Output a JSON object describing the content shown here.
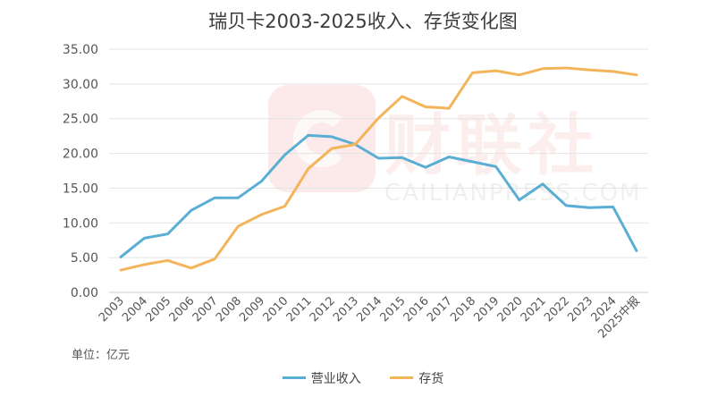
{
  "chart_data": {
    "type": "line",
    "title": "瑞贝卡2003-2025收入、存货变化图",
    "unit_label": "单位：亿元",
    "categories": [
      "2003",
      "2004",
      "2005",
      "2006",
      "2007",
      "2008",
      "2009",
      "2010",
      "2011",
      "2012",
      "2013",
      "2014",
      "2015",
      "2016",
      "2017",
      "2018",
      "2019",
      "2020",
      "2021",
      "2022",
      "2023",
      "2024",
      "2025中报"
    ],
    "series": [
      {
        "name": "营业收入",
        "color": "#5aaed3",
        "values": [
          5.1,
          7.8,
          8.4,
          11.8,
          13.6,
          13.6,
          16.0,
          19.8,
          22.6,
          22.4,
          21.3,
          19.3,
          19.4,
          18.0,
          19.5,
          18.8,
          18.1,
          13.3,
          15.6,
          12.5,
          12.2,
          12.3,
          6.0
        ]
      },
      {
        "name": "存货",
        "color": "#f3b45a",
        "values": [
          3.2,
          4.0,
          4.6,
          3.5,
          4.8,
          9.5,
          11.2,
          12.4,
          17.8,
          20.7,
          21.3,
          25.1,
          28.2,
          26.7,
          26.5,
          31.6,
          31.9,
          31.3,
          32.2,
          32.3,
          32.0,
          31.8,
          31.3
        ]
      }
    ],
    "yticks": [
      "0.00",
      "5.00",
      "10.00",
      "15.00",
      "20.00",
      "25.00",
      "30.00",
      "35.00"
    ],
    "ylim": [
      0,
      35
    ],
    "grid": true,
    "legend_position": "bottom",
    "watermark": {
      "brand": "财联社",
      "site": "CAILIANPRESS.COM"
    }
  }
}
